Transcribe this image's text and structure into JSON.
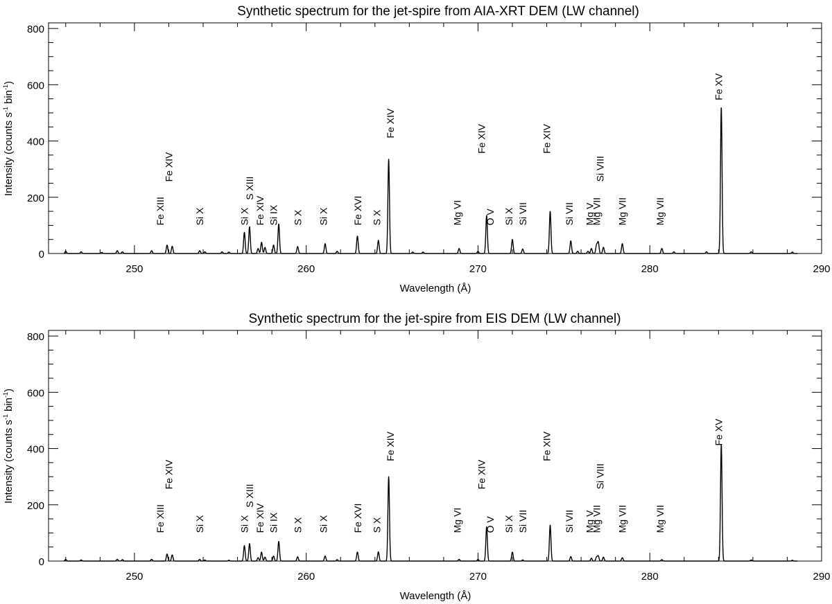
{
  "chart_data": [
    {
      "type": "line",
      "title": "Synthetic spectrum for the jet-spire from AIA-XRT DEM (LW channel)",
      "xlabel": "Wavelength (Å)",
      "ylabel_prefix": "Intensity (counts s",
      "ylabel_sup1": "-1",
      "ylabel_mid": " bin",
      "ylabel_sup2": "-1",
      "ylabel_suffix": ")",
      "xlim": [
        245,
        290
      ],
      "ylim": [
        0,
        820
      ],
      "xticks": [
        250,
        260,
        270,
        280,
        290
      ],
      "yticks": [
        0,
        200,
        400,
        600,
        800
      ],
      "peaks": [
        {
          "x": 246.0,
          "y": 8
        },
        {
          "x": 246.9,
          "y": 6
        },
        {
          "x": 248.1,
          "y": 4
        },
        {
          "x": 249.0,
          "y": 10
        },
        {
          "x": 249.3,
          "y": 6
        },
        {
          "x": 251.0,
          "y": 10
        },
        {
          "x": 251.9,
          "y": 30
        },
        {
          "x": 252.2,
          "y": 26
        },
        {
          "x": 253.8,
          "y": 10
        },
        {
          "x": 254.1,
          "y": 6
        },
        {
          "x": 255.1,
          "y": 6
        },
        {
          "x": 255.5,
          "y": 5
        },
        {
          "x": 256.4,
          "y": 75
        },
        {
          "x": 256.7,
          "y": 95
        },
        {
          "x": 257.2,
          "y": 18
        },
        {
          "x": 257.4,
          "y": 40
        },
        {
          "x": 257.6,
          "y": 22
        },
        {
          "x": 258.1,
          "y": 30
        },
        {
          "x": 258.4,
          "y": 105
        },
        {
          "x": 259.5,
          "y": 25
        },
        {
          "x": 261.1,
          "y": 35
        },
        {
          "x": 261.8,
          "y": 8
        },
        {
          "x": 262.98,
          "y": 62
        },
        {
          "x": 264.2,
          "y": 47
        },
        {
          "x": 264.8,
          "y": 335
        },
        {
          "x": 266.2,
          "y": 5
        },
        {
          "x": 266.8,
          "y": 5
        },
        {
          "x": 268.9,
          "y": 18
        },
        {
          "x": 270.0,
          "y": 8
        },
        {
          "x": 270.5,
          "y": 135
        },
        {
          "x": 272.0,
          "y": 50
        },
        {
          "x": 272.6,
          "y": 16
        },
        {
          "x": 274.2,
          "y": 150
        },
        {
          "x": 275.4,
          "y": 45
        },
        {
          "x": 275.8,
          "y": 8
        },
        {
          "x": 276.4,
          "y": 8
        },
        {
          "x": 276.6,
          "y": 18
        },
        {
          "x": 276.9,
          "y": 30
        },
        {
          "x": 277.0,
          "y": 40
        },
        {
          "x": 277.3,
          "y": 22
        },
        {
          "x": 278.4,
          "y": 35
        },
        {
          "x": 280.7,
          "y": 18
        },
        {
          "x": 281.4,
          "y": 6
        },
        {
          "x": 283.3,
          "y": 6
        },
        {
          "x": 284.16,
          "y": 520
        },
        {
          "x": 285.9,
          "y": 6
        },
        {
          "x": 288.3,
          "y": 5
        }
      ],
      "annotations": [
        {
          "text": "Fe XIII",
          "x": 251.5,
          "y": 100
        },
        {
          "text": "Fe XIV",
          "x": 252.0,
          "y": 255
        },
        {
          "text": "Si X",
          "x": 253.8,
          "y": 100
        },
        {
          "text": "Si X",
          "x": 256.4,
          "y": 100
        },
        {
          "text": "S XIII",
          "x": 256.7,
          "y": 190
        },
        {
          "text": "Fe XIV",
          "x": 257.3,
          "y": 100
        },
        {
          "text": "Si IX",
          "x": 258.1,
          "y": 100
        },
        {
          "text": "S X",
          "x": 259.5,
          "y": 100
        },
        {
          "text": "Si X",
          "x": 261.0,
          "y": 100
        },
        {
          "text": "Fe XVI",
          "x": 263.0,
          "y": 100
        },
        {
          "text": "S X",
          "x": 264.1,
          "y": 100
        },
        {
          "text": "Fe XIV",
          "x": 264.9,
          "y": 410
        },
        {
          "text": "Mg VI",
          "x": 268.8,
          "y": 100
        },
        {
          "text": "Fe XIV",
          "x": 270.2,
          "y": 355
        },
        {
          "text": "O V",
          "x": 270.7,
          "y": 100
        },
        {
          "text": "Si X",
          "x": 271.8,
          "y": 100
        },
        {
          "text": "Si VII",
          "x": 272.6,
          "y": 100
        },
        {
          "text": "Fe XIV",
          "x": 274.0,
          "y": 355
        },
        {
          "text": "Si VII",
          "x": 275.3,
          "y": 100
        },
        {
          "text": "Mg V",
          "x": 276.5,
          "y": 100
        },
        {
          "text": "Mg VII",
          "x": 276.9,
          "y": 100
        },
        {
          "text": "Si VIII",
          "x": 277.1,
          "y": 255
        },
        {
          "text": "Mg VII",
          "x": 278.4,
          "y": 100
        },
        {
          "text": "Mg VII",
          "x": 280.6,
          "y": 100
        },
        {
          "text": "Fe XV",
          "x": 284.0,
          "y": 545
        }
      ]
    },
    {
      "type": "line",
      "title": "Synthetic spectrum for the jet-spire from EIS DEM (LW channel)",
      "xlabel": "Wavelength (Å)",
      "ylabel_prefix": "Intensity (counts s",
      "ylabel_sup1": "-1",
      "ylabel_mid": " bin",
      "ylabel_sup2": "-1",
      "ylabel_suffix": ")",
      "xlim": [
        245,
        290
      ],
      "ylim": [
        0,
        820
      ],
      "xticks": [
        250,
        260,
        270,
        280,
        290
      ],
      "yticks": [
        0,
        200,
        400,
        600,
        800
      ],
      "peaks": [
        {
          "x": 246.0,
          "y": 6
        },
        {
          "x": 246.9,
          "y": 4
        },
        {
          "x": 249.0,
          "y": 6
        },
        {
          "x": 249.3,
          "y": 5
        },
        {
          "x": 251.0,
          "y": 6
        },
        {
          "x": 251.9,
          "y": 25
        },
        {
          "x": 252.2,
          "y": 22
        },
        {
          "x": 253.8,
          "y": 6
        },
        {
          "x": 254.1,
          "y": 4
        },
        {
          "x": 255.5,
          "y": 3
        },
        {
          "x": 256.4,
          "y": 55
        },
        {
          "x": 256.7,
          "y": 62
        },
        {
          "x": 257.2,
          "y": 12
        },
        {
          "x": 257.4,
          "y": 32
        },
        {
          "x": 257.6,
          "y": 14
        },
        {
          "x": 258.1,
          "y": 18
        },
        {
          "x": 258.4,
          "y": 70
        },
        {
          "x": 259.5,
          "y": 15
        },
        {
          "x": 261.1,
          "y": 18
        },
        {
          "x": 261.8,
          "y": 5
        },
        {
          "x": 262.98,
          "y": 32
        },
        {
          "x": 264.2,
          "y": 33
        },
        {
          "x": 264.8,
          "y": 300
        },
        {
          "x": 268.9,
          "y": 6
        },
        {
          "x": 270.0,
          "y": 6
        },
        {
          "x": 270.5,
          "y": 122
        },
        {
          "x": 272.0,
          "y": 32
        },
        {
          "x": 272.6,
          "y": 4
        },
        {
          "x": 274.2,
          "y": 128
        },
        {
          "x": 275.4,
          "y": 16
        },
        {
          "x": 276.6,
          "y": 10
        },
        {
          "x": 276.9,
          "y": 14
        },
        {
          "x": 277.0,
          "y": 18
        },
        {
          "x": 277.3,
          "y": 14
        },
        {
          "x": 278.4,
          "y": 12
        },
        {
          "x": 280.7,
          "y": 5
        },
        {
          "x": 284.16,
          "y": 415
        },
        {
          "x": 285.9,
          "y": 4
        },
        {
          "x": 288.3,
          "y": 3
        }
      ],
      "annotations": [
        {
          "text": "Fe XIII",
          "x": 251.5,
          "y": 100
        },
        {
          "text": "Fe XIV",
          "x": 252.0,
          "y": 255
        },
        {
          "text": "Si X",
          "x": 253.8,
          "y": 100
        },
        {
          "text": "Si X",
          "x": 256.4,
          "y": 100
        },
        {
          "text": "S XIII",
          "x": 256.7,
          "y": 190
        },
        {
          "text": "Fe XIV",
          "x": 257.3,
          "y": 100
        },
        {
          "text": "Si IX",
          "x": 258.1,
          "y": 100
        },
        {
          "text": "S X",
          "x": 259.5,
          "y": 100
        },
        {
          "text": "Si X",
          "x": 261.0,
          "y": 100
        },
        {
          "text": "Fe XVI",
          "x": 263.0,
          "y": 100
        },
        {
          "text": "S X",
          "x": 264.1,
          "y": 100
        },
        {
          "text": "Fe XIV",
          "x": 264.9,
          "y": 355
        },
        {
          "text": "Mg VI",
          "x": 268.8,
          "y": 100
        },
        {
          "text": "Fe XIV",
          "x": 270.2,
          "y": 255
        },
        {
          "text": "O V",
          "x": 270.7,
          "y": 100
        },
        {
          "text": "Si X",
          "x": 271.8,
          "y": 100
        },
        {
          "text": "Si VII",
          "x": 272.6,
          "y": 100
        },
        {
          "text": "Fe XIV",
          "x": 274.0,
          "y": 355
        },
        {
          "text": "Si VII",
          "x": 275.3,
          "y": 100
        },
        {
          "text": "Mg V",
          "x": 276.5,
          "y": 100
        },
        {
          "text": "Mg VII",
          "x": 276.9,
          "y": 100
        },
        {
          "text": "Si VIII",
          "x": 277.1,
          "y": 255
        },
        {
          "text": "Mg VII",
          "x": 278.4,
          "y": 100
        },
        {
          "text": "Mg VII",
          "x": 280.6,
          "y": 100
        },
        {
          "text": "Fe XV",
          "x": 284.0,
          "y": 410
        }
      ]
    }
  ]
}
